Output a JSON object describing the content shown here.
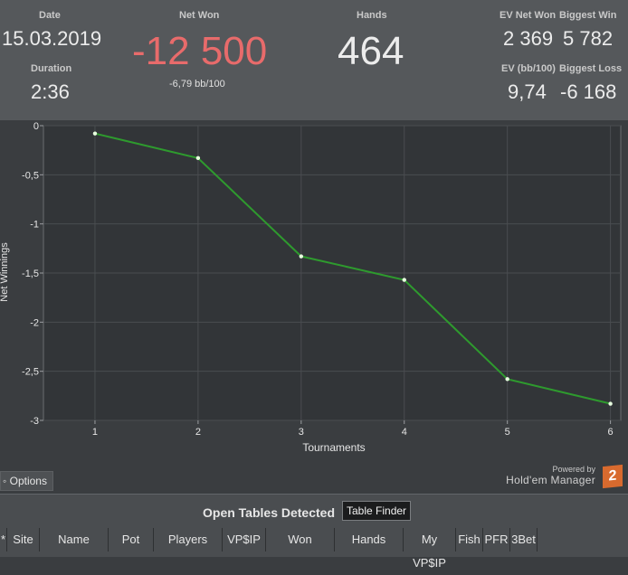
{
  "stats": {
    "date_label": "Date",
    "date_value": "15.03.2019",
    "duration_label": "Duration",
    "duration_value": "2:36",
    "net_won_label": "Net Won",
    "net_won_value": "-12 500",
    "net_won_bb": "-6,79 bb/100",
    "hands_label": "Hands",
    "hands_value": "464",
    "ev_net_won_label": "EV Net Won",
    "ev_net_won_value": "2 369",
    "biggest_win_label": "Biggest Win",
    "biggest_win_value": "5 782",
    "ev_bb_label": "EV (bb/100)",
    "ev_bb_value": "9,74",
    "biggest_loss_label": "Biggest Loss",
    "biggest_loss_value": "-6 168"
  },
  "chart_data": {
    "type": "line",
    "x": [
      1,
      2,
      3,
      4,
      5,
      6
    ],
    "y": [
      -0.08,
      -0.33,
      -1.33,
      -1.57,
      -2.58,
      -2.83
    ],
    "xlabel": "Tournaments",
    "ylabel": "Net Winnings",
    "xlim": [
      0.5,
      6.1
    ],
    "ylim": [
      -3,
      0
    ],
    "x_ticks": [
      "1",
      "2",
      "3",
      "4",
      "5",
      "6"
    ],
    "y_ticks": [
      "0",
      "-0,5",
      "-1",
      "-1,5",
      "-2",
      "-2,5",
      "-3"
    ],
    "y_tick_values": [
      0,
      -0.5,
      -1,
      -1.5,
      -2,
      -2.5,
      -3
    ],
    "grid": true,
    "line_color": "#2e9a2e",
    "point_color": "#e8ffe0"
  },
  "footer": {
    "options_label": "Options",
    "powered_by": "Powered by",
    "hm_logo_text": "Hold'em Manager",
    "hm_badge": "2"
  },
  "tables": {
    "title": "Open Tables Detected",
    "finder_button": "Table Finder",
    "columns": [
      "*",
      "Site",
      "Name",
      "Pot",
      "Players",
      "VP$IP",
      "Won",
      "Hands",
      "My VP$IP",
      "Fish",
      "PFR",
      "3Bet"
    ]
  }
}
